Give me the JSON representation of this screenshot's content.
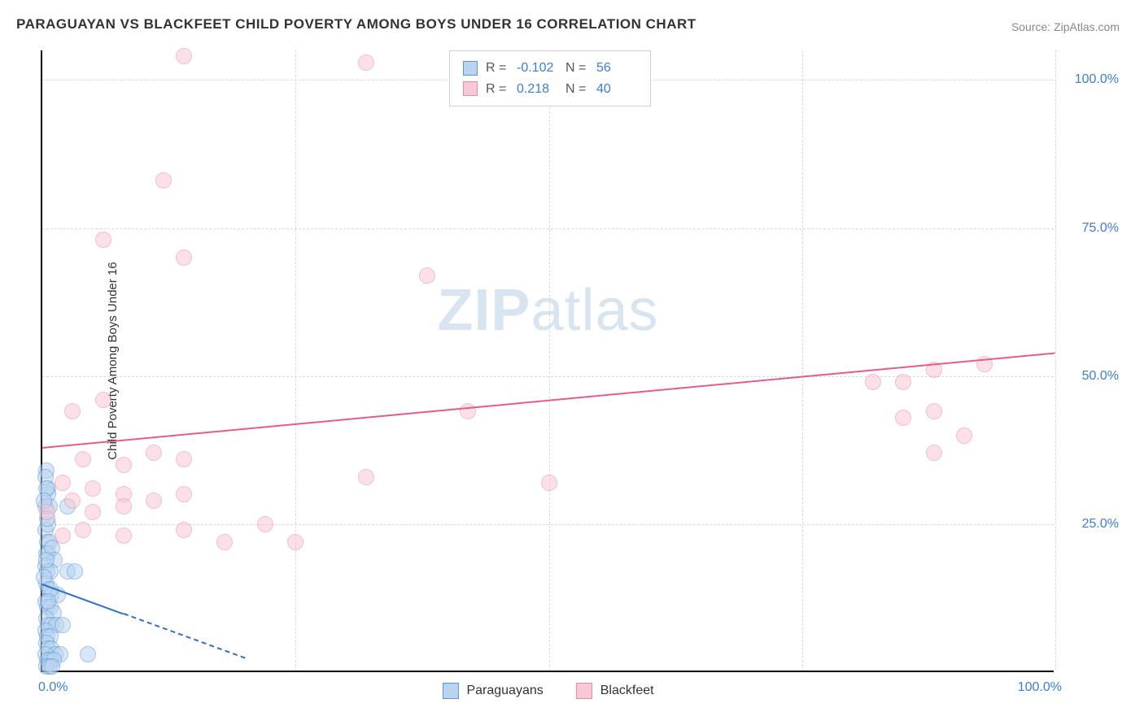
{
  "title": "PARAGUAYAN VS BLACKFEET CHILD POVERTY AMONG BOYS UNDER 16 CORRELATION CHART",
  "source": "Source: ZipAtlas.com",
  "y_axis_label": "Child Poverty Among Boys Under 16",
  "watermark_bold": "ZIP",
  "watermark_rest": "atlas",
  "chart": {
    "type": "scatter",
    "xlim": [
      0,
      100
    ],
    "ylim": [
      0,
      105
    ],
    "x_ticks": [
      0,
      50,
      100
    ],
    "x_tick_labels": [
      "0.0%",
      "",
      "100.0%"
    ],
    "y_ticks": [
      25,
      50,
      75,
      100
    ],
    "y_tick_labels": [
      "25.0%",
      "50.0%",
      "75.0%",
      "100.0%"
    ],
    "v_grid_at": [
      25,
      50,
      75,
      100
    ],
    "h_grid_at": [
      25,
      50,
      75,
      100
    ],
    "background_color": "#ffffff",
    "grid_color": "#d8d8d8",
    "axis_color": "#000000",
    "tick_label_color": "#3b7dd8",
    "tick_fontsize": 16,
    "title_fontsize": 17,
    "series": [
      {
        "name": "Paraguayans",
        "fill": "#b9d4f0",
        "stroke": "#5a94d8",
        "fill_opacity": 0.55,
        "marker_radius": 10,
        "R": "-0.102",
        "N": "56",
        "trend": {
          "x1": 0,
          "y1": 15,
          "x2": 8,
          "y2": 10,
          "dash_to_x": 20,
          "color": "#2f6fc9",
          "width": 2
        },
        "points": [
          [
            0.4,
            34
          ],
          [
            0.6,
            31
          ],
          [
            0.6,
            30
          ],
          [
            0.3,
            28
          ],
          [
            2.5,
            28
          ],
          [
            0.3,
            24
          ],
          [
            0.5,
            22
          ],
          [
            0.7,
            22
          ],
          [
            0.4,
            20
          ],
          [
            0.6,
            20
          ],
          [
            1.0,
            21
          ],
          [
            1.2,
            19
          ],
          [
            0.3,
            18
          ],
          [
            0.5,
            17
          ],
          [
            0.8,
            17
          ],
          [
            2.5,
            17
          ],
          [
            3.2,
            17
          ],
          [
            0.4,
            15
          ],
          [
            0.6,
            14
          ],
          [
            0.9,
            13
          ],
          [
            1.5,
            13
          ],
          [
            0.3,
            12
          ],
          [
            0.5,
            11
          ],
          [
            0.8,
            11
          ],
          [
            1.1,
            10
          ],
          [
            0.4,
            9
          ],
          [
            0.6,
            8
          ],
          [
            0.9,
            8
          ],
          [
            1.4,
            8
          ],
          [
            2.0,
            8
          ],
          [
            0.3,
            7
          ],
          [
            0.5,
            6
          ],
          [
            0.8,
            6
          ],
          [
            0.4,
            5
          ],
          [
            0.6,
            4
          ],
          [
            0.9,
            4
          ],
          [
            1.3,
            3
          ],
          [
            1.8,
            3
          ],
          [
            4.5,
            3
          ],
          [
            0.3,
            3
          ],
          [
            0.5,
            2
          ],
          [
            0.8,
            2
          ],
          [
            1.1,
            2
          ],
          [
            0.4,
            1
          ],
          [
            0.7,
            1
          ],
          [
            1.0,
            1
          ],
          [
            0.2,
            16
          ],
          [
            0.4,
            19
          ],
          [
            0.6,
            25
          ],
          [
            0.3,
            33
          ],
          [
            0.7,
            28
          ],
          [
            0.5,
            26
          ],
          [
            0.4,
            31
          ],
          [
            0.2,
            29
          ],
          [
            0.8,
            14
          ],
          [
            0.6,
            12
          ]
        ]
      },
      {
        "name": "Blackfeet",
        "fill": "#f8c8d4",
        "stroke": "#e88ba5",
        "fill_opacity": 0.55,
        "marker_radius": 10,
        "R": "0.218",
        "N": "40",
        "trend": {
          "x1": 0,
          "y1": 38,
          "x2": 100,
          "y2": 54,
          "color": "#e85b87",
          "width": 2
        },
        "points": [
          [
            14,
            104
          ],
          [
            32,
            103
          ],
          [
            45,
            103
          ],
          [
            12,
            83
          ],
          [
            14,
            70
          ],
          [
            6,
            73
          ],
          [
            38,
            67
          ],
          [
            82,
            49
          ],
          [
            85,
            49
          ],
          [
            88,
            51
          ],
          [
            93,
            52
          ],
          [
            85,
            43
          ],
          [
            88,
            44
          ],
          [
            91,
            40
          ],
          [
            88,
            37
          ],
          [
            42,
            44
          ],
          [
            6,
            46
          ],
          [
            3,
            44
          ],
          [
            4,
            36
          ],
          [
            8,
            35
          ],
          [
            11,
            37
          ],
          [
            14,
            36
          ],
          [
            2,
            32
          ],
          [
            5,
            31
          ],
          [
            8,
            30
          ],
          [
            32,
            33
          ],
          [
            50,
            32
          ],
          [
            0.5,
            27
          ],
          [
            3,
            29
          ],
          [
            5,
            27
          ],
          [
            8,
            28
          ],
          [
            11,
            29
          ],
          [
            14,
            30
          ],
          [
            2,
            23
          ],
          [
            4,
            24
          ],
          [
            8,
            23
          ],
          [
            14,
            24
          ],
          [
            18,
            22
          ],
          [
            22,
            25
          ],
          [
            25,
            22
          ]
        ]
      }
    ]
  },
  "stats_box": {
    "rows": [
      {
        "swatch_fill": "#b9d4f0",
        "swatch_stroke": "#5a94d8",
        "R_label": "R =",
        "N_label": "N ="
      },
      {
        "swatch_fill": "#f8c8d4",
        "swatch_stroke": "#e88ba5",
        "R_label": "R =",
        "N_label": "N ="
      }
    ]
  },
  "bottom_legend": [
    {
      "label": "Paraguayans",
      "fill": "#b9d4f0",
      "stroke": "#5a94d8"
    },
    {
      "label": "Blackfeet",
      "fill": "#f8c8d4",
      "stroke": "#e88ba5"
    }
  ]
}
